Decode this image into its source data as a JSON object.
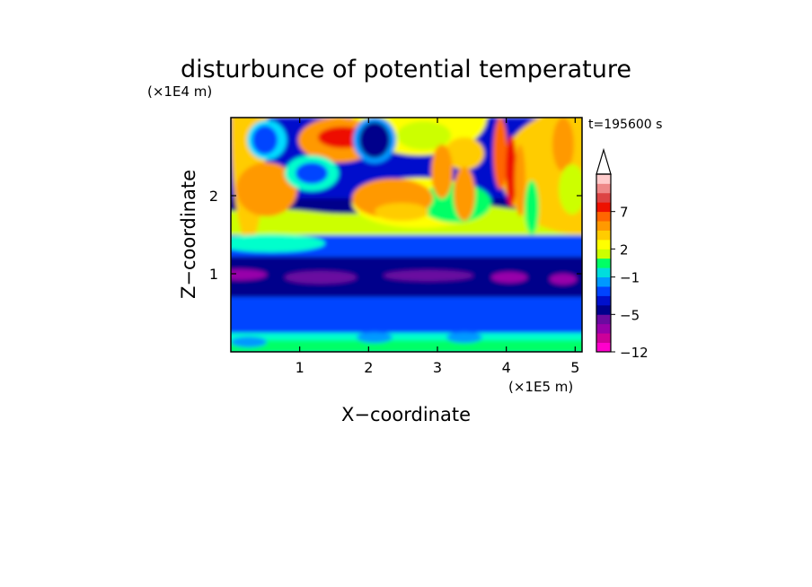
{
  "chart_data": {
    "type": "heatmap",
    "title": "disturbunce of potential temperature",
    "xlabel": "X−coordinate",
    "ylabel": "Z−coordinate",
    "x_scale_label": "(×1E5 m)",
    "y_scale_label": "(×1E4 m)",
    "time_label": "t=195600 s",
    "xlim": [
      0,
      5.1
    ],
    "ylim": [
      0,
      3.0
    ],
    "x_ticks": [
      1,
      2,
      3,
      4,
      5
    ],
    "x_tick_labels": [
      "1",
      "2",
      "3",
      "4",
      "5"
    ],
    "y_ticks": [
      1,
      2
    ],
    "y_tick_labels": [
      "1",
      "2"
    ],
    "colorbar": {
      "colors": [
        "#ff00cc",
        "#cc0099",
        "#9900aa",
        "#6a0aa0",
        "#00008b",
        "#0010cc",
        "#0044ff",
        "#0099ff",
        "#00dddd",
        "#00ff66",
        "#ccff00",
        "#ffff00",
        "#ffcc00",
        "#ff9900",
        "#ff6600",
        "#ee1100",
        "#dd4444",
        "#ee8888",
        "#ffcccc"
      ],
      "tick_labels": [
        "−12",
        "−5",
        "−1",
        "2",
        "7"
      ],
      "tick_levels": [
        -12,
        -5,
        -1,
        2,
        7
      ],
      "extend": "max"
    }
  }
}
